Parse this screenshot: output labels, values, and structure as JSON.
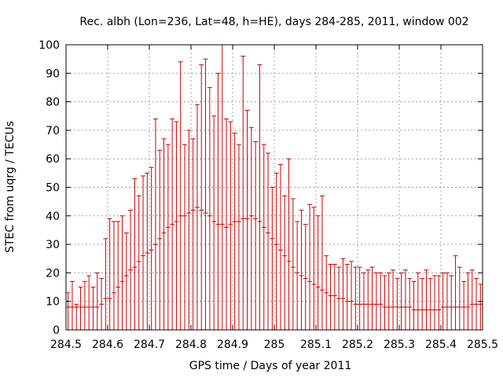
{
  "chart_data": {
    "type": "scatter",
    "title": "Rec. albh (Lon=236, Lat=48, h=HE), days 284-285, 2011, window 002",
    "xlabel": "GPS time / Days of year 2011",
    "ylabel": "STEC from uqrg / TECUs",
    "xlim": [
      284.5,
      285.5
    ],
    "ylim": [
      0,
      100
    ],
    "xticks": [
      284.5,
      284.6,
      284.7,
      284.8,
      284.9,
      285.0,
      285.1,
      285.2,
      285.3,
      285.4,
      285.5
    ],
    "xtick_labels": [
      "284.5",
      "284.6",
      "284.7",
      "284.8",
      "284.9",
      "285",
      "285.1",
      "285.2",
      "285.3",
      "285.4",
      "285.5"
    ],
    "yticks": [
      0,
      10,
      20,
      30,
      40,
      50,
      60,
      70,
      80,
      90,
      100
    ],
    "ytick_labels": [
      "0",
      "10",
      "20",
      "30",
      "40",
      "50",
      "60",
      "70",
      "80",
      "90",
      "100"
    ],
    "grid": true,
    "legend": "none",
    "colors": {
      "series": "#cc0000"
    },
    "series": [
      {
        "name": "STEC",
        "x": [
          284.505,
          284.515,
          284.525,
          284.535,
          284.545,
          284.555,
          284.565,
          284.575,
          284.585,
          284.595,
          284.605,
          284.615,
          284.625,
          284.635,
          284.645,
          284.655,
          284.665,
          284.675,
          284.685,
          284.695,
          284.705,
          284.715,
          284.725,
          284.735,
          284.745,
          284.755,
          284.765,
          284.775,
          284.785,
          284.795,
          284.805,
          284.815,
          284.825,
          284.835,
          284.845,
          284.855,
          284.865,
          284.875,
          284.885,
          284.895,
          284.905,
          284.915,
          284.925,
          284.935,
          284.945,
          284.955,
          284.965,
          284.975,
          284.985,
          284.995,
          285.005,
          285.015,
          285.025,
          285.035,
          285.045,
          285.055,
          285.065,
          285.075,
          285.085,
          285.095,
          285.105,
          285.115,
          285.125,
          285.135,
          285.145,
          285.155,
          285.165,
          285.175,
          285.185,
          285.195,
          285.205,
          285.215,
          285.225,
          285.235,
          285.245,
          285.255,
          285.265,
          285.275,
          285.285,
          285.295,
          285.305,
          285.315,
          285.325,
          285.335,
          285.345,
          285.355,
          285.365,
          285.375,
          285.385,
          285.395,
          285.405,
          285.415,
          285.425,
          285.435,
          285.445,
          285.455,
          285.465,
          285.475,
          285.485,
          285.495
        ],
        "y": [
          13,
          17,
          9,
          15,
          17,
          19,
          15,
          20,
          18,
          32,
          39,
          38,
          38,
          40,
          34,
          42,
          53,
          47,
          54,
          55,
          57,
          74,
          63,
          67,
          65,
          74,
          73,
          94,
          65,
          70,
          67,
          79,
          93,
          95,
          85,
          75,
          90,
          100,
          74,
          73,
          69,
          65,
          96,
          77,
          71,
          66,
          93,
          65,
          62,
          50,
          55,
          58,
          47,
          60,
          46,
          38,
          42,
          37,
          44,
          43,
          40,
          47,
          26,
          23,
          23,
          22,
          25,
          23,
          24,
          22,
          22,
          20,
          21,
          22,
          20,
          20,
          19,
          20,
          21,
          18,
          20,
          21,
          18,
          17,
          20,
          18,
          21,
          18,
          19,
          19,
          20,
          20,
          19,
          26,
          22,
          17,
          20,
          21,
          18,
          16
        ],
        "y_low": [
          8,
          8,
          8,
          8,
          8,
          8,
          8,
          8,
          9,
          11,
          11,
          13,
          15,
          17,
          19,
          21,
          22,
          24,
          26,
          27,
          28,
          30,
          32,
          34,
          36,
          37,
          38,
          40,
          40,
          41,
          42,
          43,
          42,
          41,
          40,
          38,
          37,
          37,
          36,
          37,
          38,
          38,
          39,
          39,
          40,
          39,
          38,
          36,
          34,
          32,
          30,
          28,
          26,
          24,
          22,
          20,
          19,
          18,
          17,
          16,
          15,
          14,
          13,
          12,
          12,
          11,
          11,
          10,
          10,
          9,
          9,
          9,
          9,
          9,
          9,
          9,
          8,
          8,
          8,
          8,
          8,
          8,
          8,
          7,
          7,
          7,
          7,
          7,
          7,
          7,
          8,
          8,
          8,
          8,
          8,
          8,
          8,
          9,
          9,
          9
        ]
      }
    ]
  }
}
